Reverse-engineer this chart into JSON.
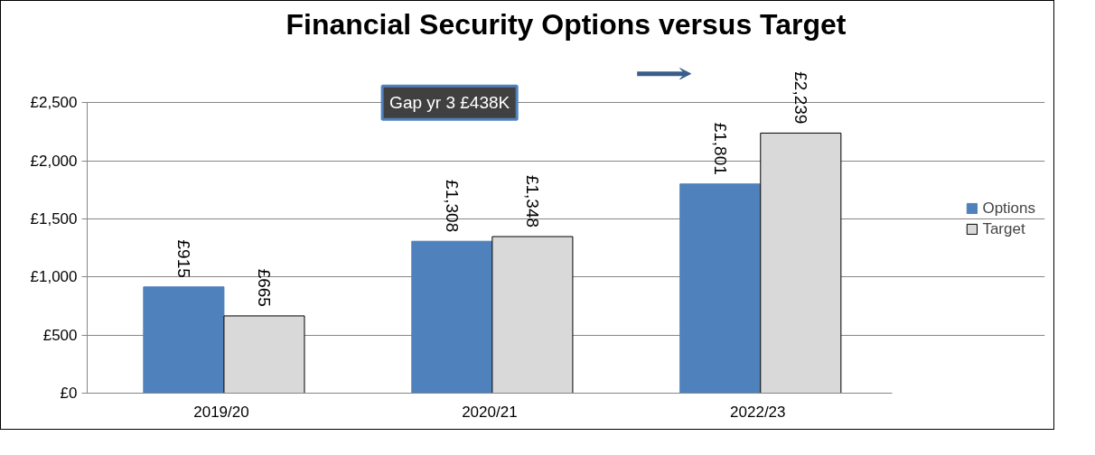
{
  "chart_data": {
    "type": "bar",
    "title": "Financial Security Options versus Target",
    "categories": [
      "2019/20",
      "2020/21",
      "2022/23"
    ],
    "series": [
      {
        "name": "Options",
        "color": "#4f81bd",
        "values": [
          915,
          1308,
          1801
        ],
        "value_labels": [
          "£915",
          "£1,308",
          "£1,801"
        ]
      },
      {
        "name": "Target",
        "color": "#d9d9d9",
        "values": [
          665,
          1348,
          2239
        ],
        "value_labels": [
          "£665",
          "£1,348",
          "£2,239"
        ]
      }
    ],
    "ylim": [
      0,
      2500
    ],
    "yticks": [
      {
        "value": 0,
        "label": "£0"
      },
      {
        "value": 500,
        "label": "£500"
      },
      {
        "value": 1000,
        "label": "£1,000"
      },
      {
        "value": 1500,
        "label": "£1,500"
      },
      {
        "value": 2000,
        "label": "£2,000"
      },
      {
        "value": 2500,
        "label": "£2,500"
      }
    ],
    "grid": "y",
    "legend": "right",
    "annotations": [
      "Gap yr 3 £438K"
    ]
  }
}
